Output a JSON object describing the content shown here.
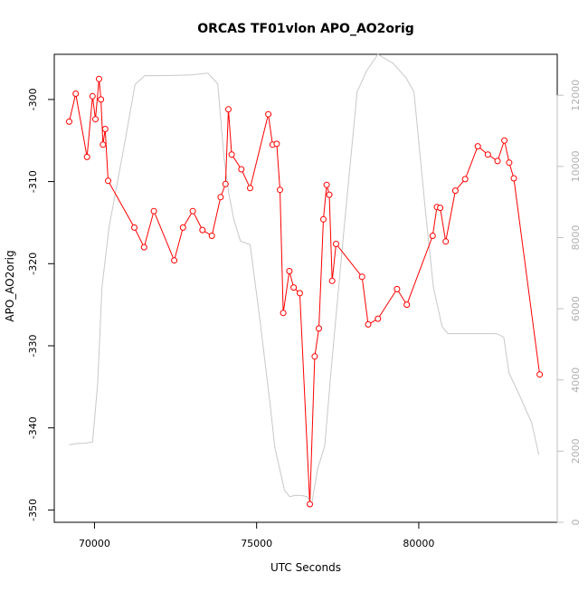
{
  "chart_data": {
    "type": "line",
    "title": "ORCAS TF01vlon APO_AO2orig",
    "xlabel": "UTC Seconds",
    "ylabel": "APO_AO2orig",
    "xlim": [
      68760,
      84270
    ],
    "ylim": [
      -351.5,
      -294.5
    ],
    "y2lim": [
      0,
      13150
    ],
    "x_ticks": [
      70000,
      75000,
      80000
    ],
    "x_tick_labels": [
      "70000",
      "75000",
      "80000"
    ],
    "y_ticks": [
      -350,
      -340,
      -330,
      -320,
      -310,
      -300
    ],
    "y_tick_labels": [
      "-350",
      "-340",
      "-330",
      "-320",
      "-310",
      "-300"
    ],
    "y2_ticks": [
      0,
      2000,
      4000,
      6000,
      8000,
      10000,
      12000
    ],
    "y2_tick_labels": [
      "0",
      "2000",
      "4000",
      "6000",
      "8000",
      "10000",
      "12000"
    ],
    "grid": false,
    "legend": "none",
    "series": [
      {
        "axis": "left",
        "color": "#ff0000",
        "style": "line+points",
        "x": [
          69220,
          69420,
          69770,
          69940,
          70030,
          70140,
          70200,
          70260,
          70330,
          70420,
          71230,
          71530,
          71830,
          72460,
          72730,
          73030,
          73330,
          73620,
          73890,
          74040,
          74130,
          74230,
          74530,
          74800,
          75360,
          75490,
          75620,
          75720,
          75820,
          76010,
          76140,
          76330,
          76640,
          76790,
          76920,
          77060,
          77160,
          77240,
          77330,
          77450,
          78250,
          78440,
          78740,
          79330,
          79630,
          80430,
          80560,
          80660,
          80830,
          81130,
          81430,
          81820,
          82130,
          82430,
          82640,
          82790,
          82930,
          83730
        ],
        "y": [
          -302.7,
          -299.3,
          -307.0,
          -299.6,
          -302.4,
          -297.5,
          -300.0,
          -305.5,
          -303.6,
          -309.9,
          -315.6,
          -318.0,
          -313.6,
          -319.6,
          -315.6,
          -313.6,
          -315.9,
          -316.6,
          -311.9,
          -310.3,
          -301.2,
          -306.7,
          -308.5,
          -310.8,
          -301.8,
          -305.5,
          -305.4,
          -311.0,
          -326.0,
          -320.9,
          -322.9,
          -323.6,
          -349.3,
          -331.3,
          -327.9,
          -314.6,
          -310.4,
          -311.6,
          -322.1,
          -317.6,
          -321.6,
          -327.4,
          -326.7,
          -323.1,
          -325.0,
          -316.6,
          -313.1,
          -313.2,
          -317.3,
          -311.1,
          -309.7,
          -305.7,
          -306.7,
          -307.5,
          -305.0,
          -307.7,
          -309.6,
          -333.5
        ]
      },
      {
        "axis": "right",
        "color": "#c8c8c8",
        "style": "line",
        "x": [
          69220,
          69520,
          69720,
          69940,
          70100,
          70230,
          70450,
          70900,
          71250,
          71550,
          72000,
          72500,
          73000,
          73500,
          73800,
          74000,
          74150,
          74300,
          74500,
          74800,
          75100,
          75420,
          75560,
          75860,
          76020,
          76200,
          76400,
          76560,
          76700,
          76880,
          77100,
          77300,
          77700,
          78100,
          78400,
          78740,
          79200,
          79600,
          79850,
          80200,
          80450,
          80720,
          80900,
          81200,
          81600,
          82000,
          82400,
          82620,
          82780,
          83040,
          83480,
          83700
        ],
        "y": [
          2180,
          2220,
          2220,
          2260,
          3900,
          6600,
          8300,
          10500,
          12300,
          12550,
          12550,
          12560,
          12570,
          12620,
          12320,
          10200,
          9200,
          8500,
          7900,
          7800,
          5700,
          3300,
          2100,
          900,
          720,
          760,
          750,
          720,
          520,
          1500,
          2150,
          4300,
          8300,
          12100,
          12700,
          13150,
          12900,
          12500,
          12100,
          8800,
          6600,
          5500,
          5300,
          5300,
          5300,
          5300,
          5300,
          5200,
          4200,
          3700,
          2800,
          1900
        ]
      }
    ]
  }
}
